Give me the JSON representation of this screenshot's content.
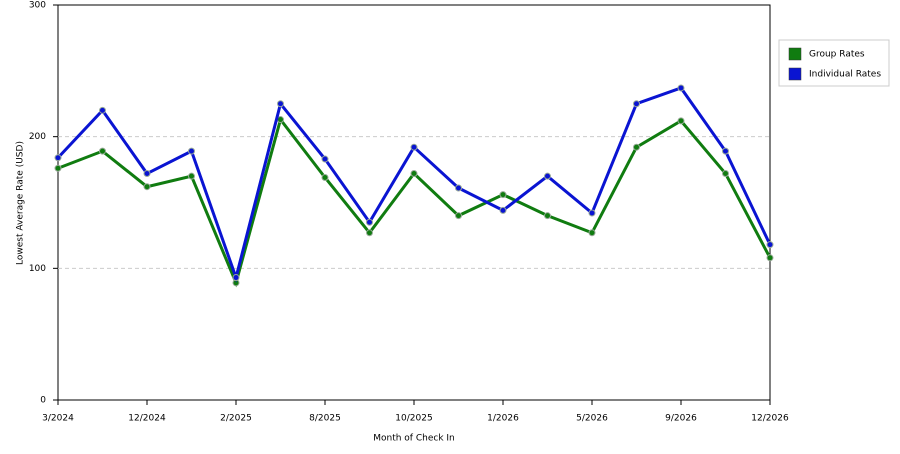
{
  "chart_data": {
    "type": "line",
    "x_label": "Month of Check In",
    "y_label": "Lowest Average Rate (USD)",
    "categories": [
      "3/2024",
      null,
      "12/2024",
      null,
      "2/2025",
      null,
      "8/2025",
      null,
      "10/2025",
      null,
      "1/2026",
      null,
      "5/2026",
      null,
      "9/2026",
      null,
      "12/2026"
    ],
    "series": [
      {
        "name": "Group Rates",
        "color": "#107c10",
        "values": [
          176,
          189,
          162,
          170,
          89,
          213,
          169,
          127,
          172,
          140,
          156,
          140,
          127,
          192,
          212,
          172,
          108
        ]
      },
      {
        "name": "Individual Rates",
        "color": "#0a14d2",
        "values": [
          184,
          220,
          172,
          189,
          93,
          225,
          183,
          135,
          192,
          161,
          144,
          170,
          142,
          225,
          237,
          189,
          118
        ]
      }
    ],
    "ylim": [
      0,
      300
    ],
    "yticks": [
      0,
      100,
      200,
      300
    ],
    "grid": true,
    "legend": "right"
  }
}
